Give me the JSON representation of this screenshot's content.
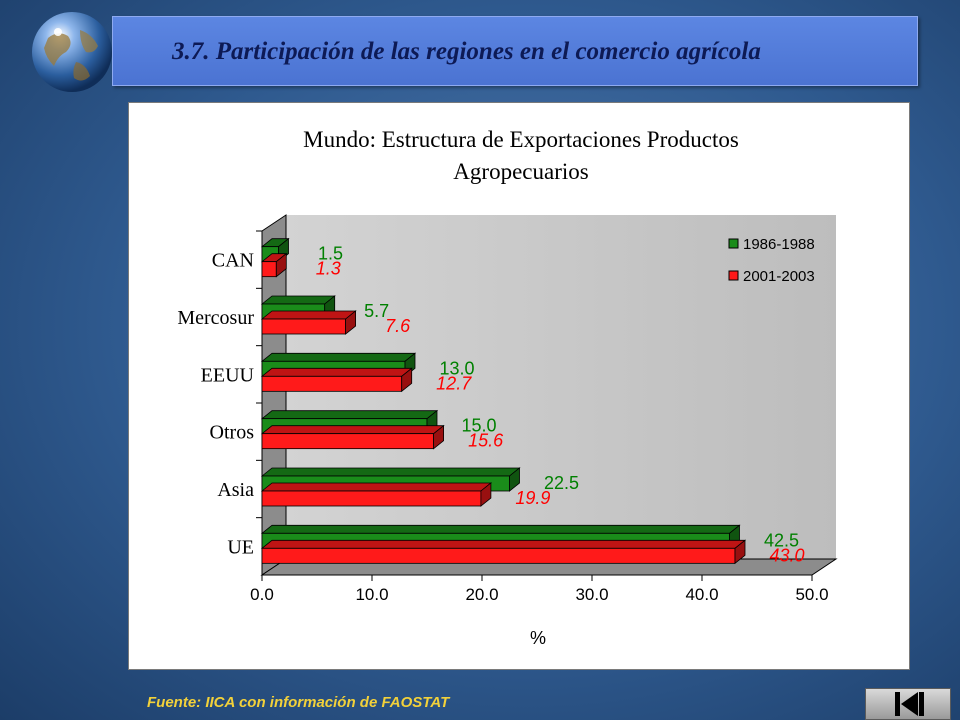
{
  "slide": {
    "title": "3.7. Participación de las regiones en el comercio agrícola",
    "source_note": "Fuente: IICA con información de FAOSTAT",
    "colors": {
      "title_bar": "#4b73d2",
      "title_text": "#0d1a55",
      "source_text": "#f2d13a",
      "series_1986": "#1a8c1a",
      "series_2001": "#ff1a1a",
      "label_1986": "#008000",
      "label_2001": "#ff0000",
      "plot_area": "#c0c0c0"
    },
    "icons": [
      "globe-icon",
      "last-slide-icon"
    ]
  },
  "chart_data": {
    "type": "bar",
    "orientation": "horizontal",
    "three_d": true,
    "title": "Mundo: Estructura de Exportaciones Productos Agropecuarios",
    "title_lines": [
      "Mundo: Estructura de Exportaciones Productos",
      "Agropecuarios"
    ],
    "xlabel": "%",
    "ylabel": "",
    "xlim": [
      0,
      50
    ],
    "xticks": [
      "0.0",
      "10.0",
      "20.0",
      "30.0",
      "40.0",
      "50.0"
    ],
    "categories": [
      "CAN",
      "Mercosur",
      "EEUU",
      "Otros",
      "Asia",
      "UE"
    ],
    "series": [
      {
        "name": "1986-1988",
        "color": "#1a8c1a",
        "values": [
          1.5,
          5.7,
          13.0,
          15.0,
          22.5,
          42.5
        ],
        "labels": [
          "1.5",
          "5.7",
          "13.0",
          "15.0",
          "22.5",
          "42.5"
        ]
      },
      {
        "name": "2001-2003",
        "color": "#ff1a1a",
        "values": [
          1.3,
          7.6,
          12.7,
          15.6,
          19.9,
          43.0
        ],
        "labels": [
          "1.3",
          "7.6",
          "12.7",
          "15.6",
          "19.9",
          "43.0"
        ]
      }
    ],
    "legend_position": "top-right",
    "grid": false
  }
}
